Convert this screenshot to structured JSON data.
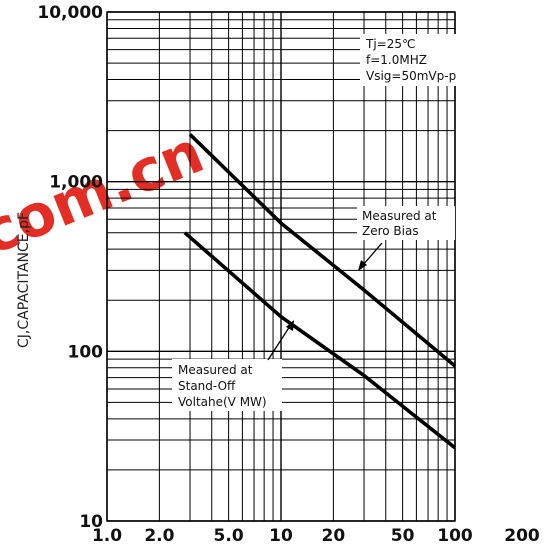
{
  "chart_data": {
    "type": "line",
    "xscale": "log",
    "yscale": "log",
    "xlim": [
      1,
      100
    ],
    "ylim": [
      10,
      10000
    ],
    "grid": true,
    "xtick_labels": [
      "1.0",
      "2.0",
      "5.0",
      "10",
      "20",
      "50",
      "100",
      "200"
    ],
    "ytick_labels": [
      "10",
      "100",
      "1,000",
      "10,000"
    ],
    "ylabel": "CJ,CAPACITANCE,pF",
    "xlabel": "",
    "title": "",
    "conditions": [
      "Tj=25℃",
      "f=1.0MHZ",
      "Vsig=50mVp-p"
    ],
    "series": [
      {
        "name": "Measured at Zero Bias",
        "x": [
          3,
          10,
          30,
          100
        ],
        "y": [
          1900,
          570,
          230,
          82
        ]
      },
      {
        "name": "Measured at Stand-Off Voltahe(V MW)",
        "x": [
          2.8,
          10,
          30,
          100
        ],
        "y": [
          500,
          160,
          72,
          27
        ]
      }
    ],
    "annotations": [
      {
        "lines": [
          "Measured at",
          "Zero Bias"
        ]
      },
      {
        "lines": [
          "Measured at",
          "Stand-Off",
          "Voltahe(V MW)"
        ]
      }
    ],
    "watermark": "com.cn"
  }
}
